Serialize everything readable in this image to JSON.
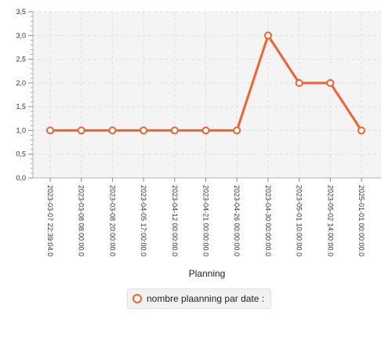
{
  "chart_data": {
    "type": "line",
    "categories": [
      "2023-03-07 22:39:04.0",
      "2023-03-08 08:00:00.0",
      "2023-03-08 20:00:00.0",
      "2023-04-05 17:00:00.0",
      "2023-04-12 00:00:00.0",
      "2023-04-21 00:00:00.0",
      "2023-04-26 00:00:00.0",
      "2023-04-30 00:00:00.0",
      "2023-05-01 10:00:00.0",
      "2023-05-02 14:00:00.0",
      "2025-01-01 00:00:00.0"
    ],
    "series": [
      {
        "name": "nombre plaanning par date :",
        "values": [
          1,
          1,
          1,
          1,
          1,
          1,
          1,
          3,
          2,
          2,
          1
        ],
        "color": "#f3622d"
      }
    ],
    "xlabel": "Planning",
    "ylabel": "",
    "ylim": [
      0,
      3.5
    ],
    "yticks": [
      "0,0",
      "0,5",
      "1,0",
      "1,5",
      "2,0",
      "2,5",
      "3,0",
      "3,5"
    ],
    "grid": true,
    "legend_position": "bottom"
  },
  "colors": {
    "plot_background": "#f4f4f4",
    "grid": "#e0e0e0",
    "series": "#f3622d"
  }
}
